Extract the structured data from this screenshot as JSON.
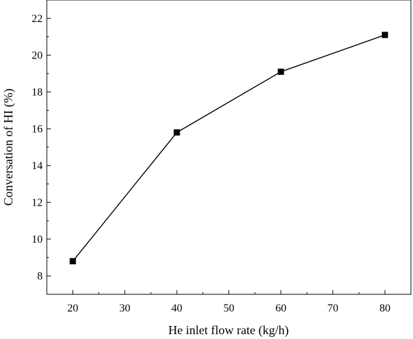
{
  "chart_data": {
    "type": "line",
    "xlabel": "He inlet flow rate (kg/h)",
    "ylabel": "Conversation of HI (%)",
    "x": [
      20,
      40,
      60,
      80
    ],
    "series": [
      {
        "values": [
          8.8,
          15.8,
          19.1,
          21.1
        ]
      }
    ],
    "xlim": [
      15,
      85
    ],
    "ylim": [
      7,
      23
    ],
    "x_ticks": [
      20,
      30,
      40,
      50,
      60,
      70,
      80
    ],
    "y_ticks": [
      8,
      10,
      12,
      14,
      16,
      18,
      20,
      22
    ],
    "x_tick_labels": [
      "20",
      "30",
      "40",
      "50",
      "60",
      "70",
      "80"
    ],
    "y_tick_labels": [
      "8",
      "10",
      "12",
      "14",
      "16",
      "18",
      "20",
      "22"
    ],
    "marker": "square",
    "grid": false,
    "line_color": "#000000"
  }
}
